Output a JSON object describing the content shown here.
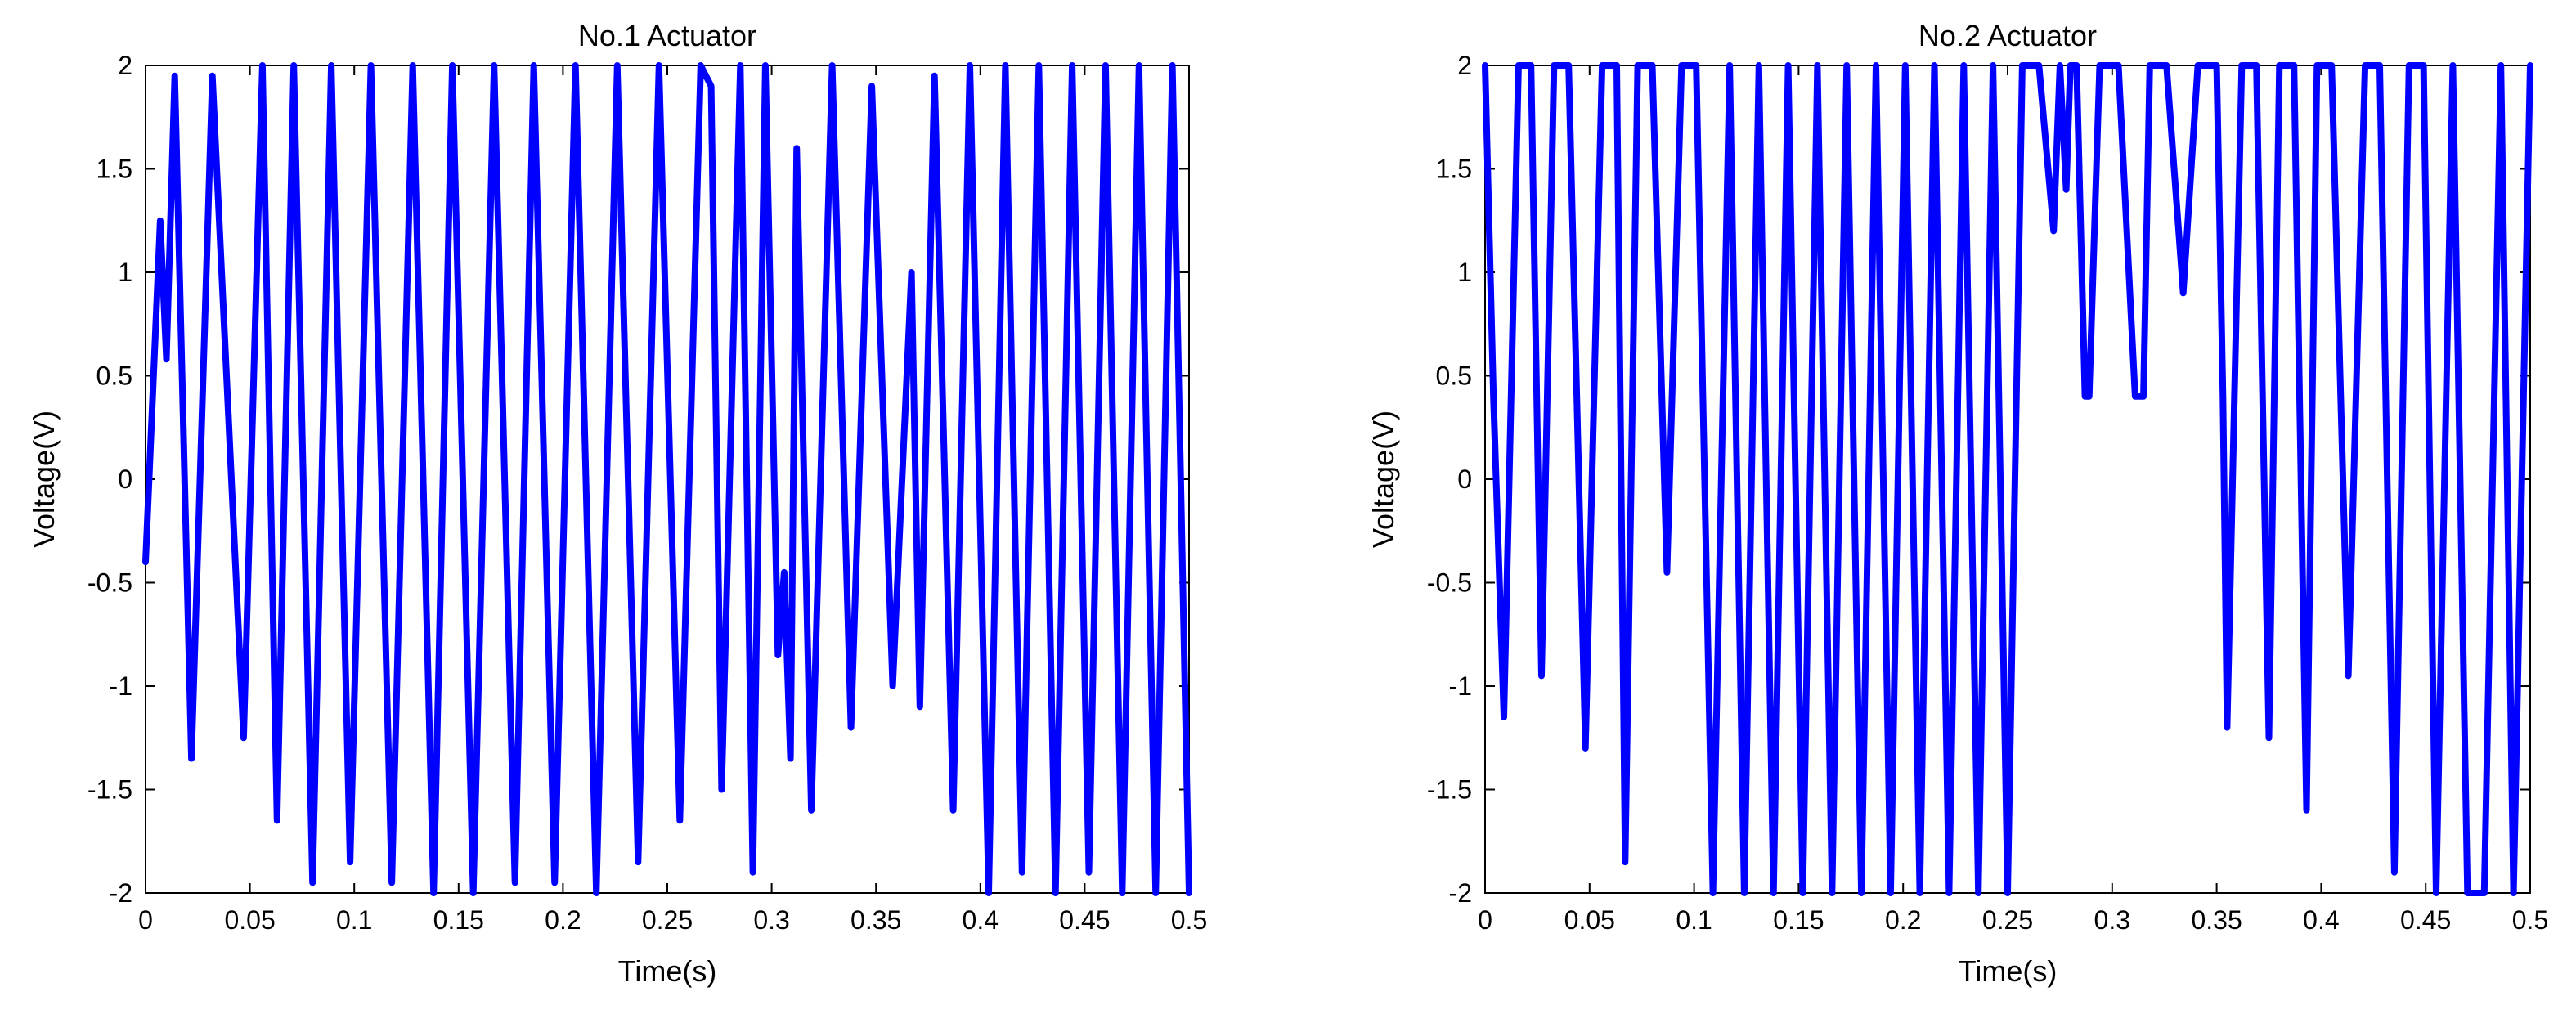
{
  "chart_data": [
    {
      "type": "line",
      "title": "No.1 Actuator",
      "xlabel": "Time(s)",
      "ylabel": "Voltage(V)",
      "xlim": [
        0,
        0.5
      ],
      "ylim": [
        -2,
        2
      ],
      "xticks": [
        "0",
        "0.05",
        "0.1",
        "0.15",
        "0.2",
        "0.25",
        "0.3",
        "0.35",
        "0.4",
        "0.45",
        "0.5"
      ],
      "yticks": [
        "-2",
        "-1.5",
        "-1",
        "-0.5",
        "0",
        "0.5",
        "1",
        "1.5",
        "2"
      ],
      "color": "#0000ff",
      "series": [
        {
          "x": [
            0.0,
            0.007,
            0.01,
            0.014,
            0.022,
            0.032,
            0.047,
            0.056,
            0.063,
            0.071,
            0.08,
            0.089,
            0.098,
            0.108,
            0.118,
            0.128,
            0.138,
            0.147,
            0.157,
            0.167,
            0.177,
            0.186,
            0.196,
            0.206,
            0.216,
            0.226,
            0.236,
            0.246,
            0.256,
            0.266,
            0.271,
            0.276,
            0.285,
            0.291,
            0.297,
            0.303,
            0.306,
            0.309,
            0.312,
            0.319,
            0.329,
            0.338,
            0.348,
            0.358,
            0.367,
            0.371,
            0.378,
            0.387,
            0.395,
            0.404,
            0.412,
            0.42,
            0.428,
            0.436,
            0.444,
            0.452,
            0.46,
            0.468,
            0.476,
            0.484,
            0.492,
            0.5
          ],
          "y": [
            -0.4,
            1.25,
            0.58,
            1.95,
            -1.35,
            1.95,
            -1.25,
            2.0,
            -1.65,
            2.0,
            -1.95,
            2.0,
            -1.85,
            2.0,
            -1.95,
            2.0,
            -2.0,
            2.0,
            -2.0,
            2.0,
            -1.95,
            2.0,
            -1.95,
            2.0,
            -2.0,
            2.0,
            -1.85,
            2.0,
            -1.65,
            2.0,
            1.9,
            -1.5,
            2.0,
            -1.9,
            2.0,
            -0.85,
            -0.45,
            -1.35,
            1.6,
            -1.6,
            2.0,
            -1.2,
            1.9,
            -1.0,
            1.0,
            -1.1,
            1.95,
            -1.6,
            2.0,
            -2.0,
            2.0,
            -1.9,
            2.0,
            -2.0,
            2.0,
            -1.9,
            2.0,
            -2.0,
            2.0,
            -2.0,
            2.0,
            -2.0
          ]
        }
      ]
    },
    {
      "type": "line",
      "title": "No.2 Actuator",
      "xlabel": "Time(s)",
      "ylabel": "Voltage(V)",
      "xlim": [
        0,
        0.5
      ],
      "ylim": [
        -2,
        2
      ],
      "xticks": [
        "0",
        "0.05",
        "0.1",
        "0.15",
        "0.2",
        "0.25",
        "0.3",
        "0.35",
        "0.4",
        "0.45",
        "0.5"
      ],
      "yticks": [
        "-2",
        "-1.5",
        "-1",
        "-0.5",
        "0",
        "0.5",
        "1",
        "1.5",
        "2"
      ],
      "color": "#0000ff",
      "series": [
        {
          "x": [
            0.0,
            0.004,
            0.009,
            0.016,
            0.022,
            0.027,
            0.033,
            0.04,
            0.048,
            0.056,
            0.063,
            0.067,
            0.073,
            0.08,
            0.087,
            0.094,
            0.101,
            0.109,
            0.117,
            0.124,
            0.131,
            0.138,
            0.145,
            0.152,
            0.159,
            0.166,
            0.173,
            0.18,
            0.187,
            0.194,
            0.201,
            0.208,
            0.215,
            0.222,
            0.229,
            0.236,
            0.243,
            0.25,
            0.257,
            0.265,
            0.272,
            0.275,
            0.278,
            0.28,
            0.283,
            0.287,
            0.289,
            0.294,
            0.303,
            0.311,
            0.315,
            0.318,
            0.326,
            0.334,
            0.341,
            0.35,
            0.353,
            0.355,
            0.362,
            0.369,
            0.375,
            0.38,
            0.387,
            0.393,
            0.398,
            0.405,
            0.413,
            0.421,
            0.428,
            0.435,
            0.442,
            0.449,
            0.455,
            0.463,
            0.47,
            0.478,
            0.486,
            0.492,
            0.5
          ],
          "y": [
            2.0,
            0.4,
            -1.15,
            2.0,
            2.0,
            -0.95,
            2.0,
            2.0,
            -1.3,
            2.0,
            2.0,
            -1.85,
            2.0,
            2.0,
            -0.45,
            2.0,
            2.0,
            -2.0,
            2.0,
            -2.0,
            2.0,
            -2.0,
            2.0,
            -2.0,
            2.0,
            -2.0,
            2.0,
            -2.0,
            2.0,
            -2.0,
            2.0,
            -2.0,
            2.0,
            -2.0,
            2.0,
            -2.0,
            2.0,
            -2.0,
            2.0,
            2.0,
            1.2,
            2.0,
            1.4,
            2.0,
            2.0,
            0.4,
            0.4,
            2.0,
            2.0,
            0.4,
            0.4,
            2.0,
            2.0,
            0.9,
            2.0,
            2.0,
            0.4,
            -1.2,
            2.0,
            2.0,
            -1.25,
            2.0,
            2.0,
            -1.6,
            2.0,
            2.0,
            -0.95,
            2.0,
            2.0,
            -1.9,
            2.0,
            2.0,
            -2.0,
            2.0,
            -2.0,
            -2.0,
            2.0,
            -2.0,
            2.0
          ]
        }
      ]
    }
  ]
}
